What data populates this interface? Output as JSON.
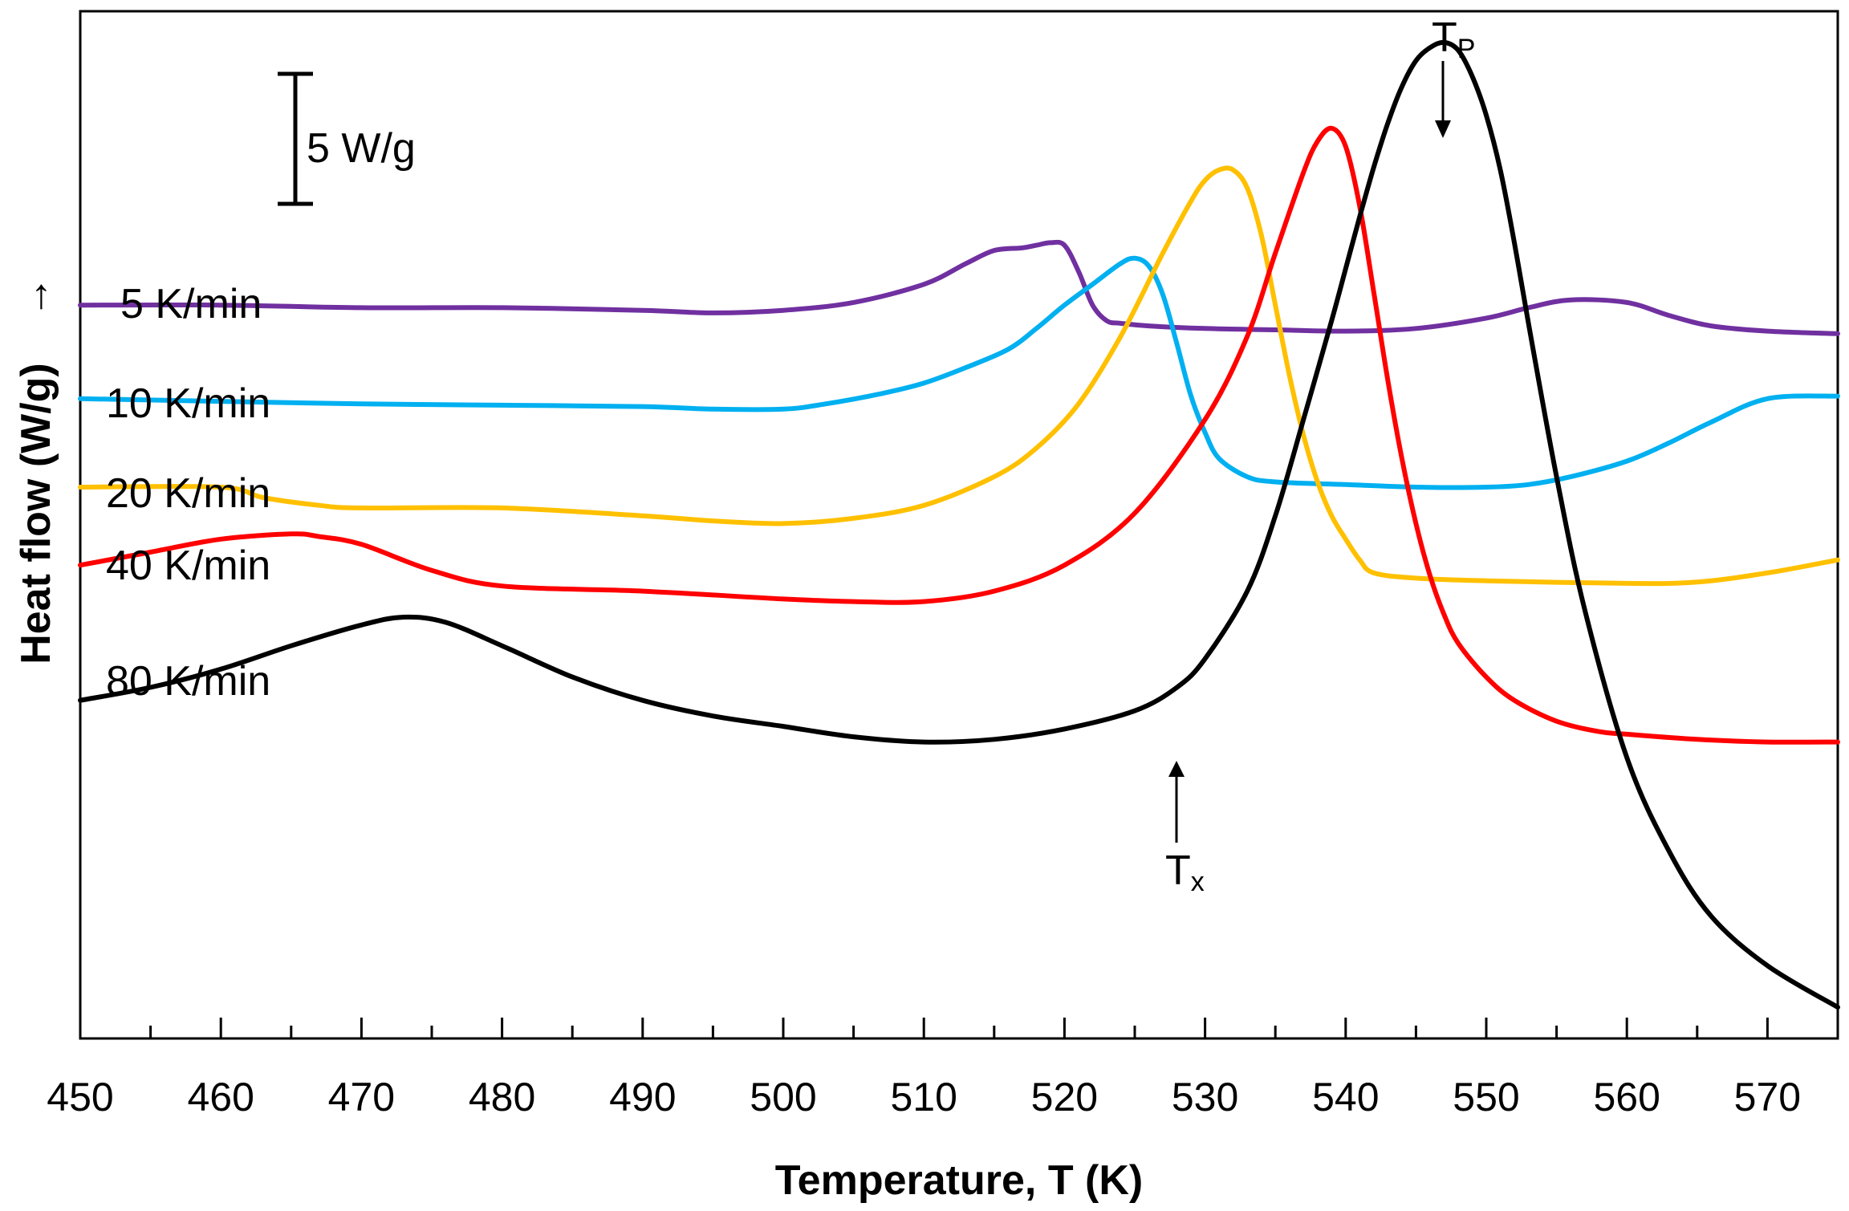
{
  "chart_data": {
    "type": "line",
    "title": "",
    "xlabel": "Temperature, T (K)",
    "ylabel": "Heat flow (W/g)",
    "ylabel_arrow": "→",
    "xlim": [
      450,
      575
    ],
    "ylim": [
      -13,
      26.5
    ],
    "xticks": [
      450,
      460,
      470,
      480,
      490,
      500,
      510,
      520,
      530,
      540,
      550,
      560,
      570
    ],
    "grid": false,
    "scale_bar": {
      "label": "5 W/g",
      "value": 5
    },
    "series": [
      {
        "name": "5 K/min",
        "color": "#7030A0",
        "x": [
          450,
          460,
          470,
          480,
          490,
          495,
          500,
          505,
          510,
          513,
          515,
          517,
          518,
          519,
          520,
          521,
          522,
          523,
          524,
          526,
          530,
          535,
          540,
          545,
          550,
          553,
          556,
          560,
          563,
          566,
          570,
          575
        ],
        "y": [
          15.2,
          15.2,
          15.1,
          15.1,
          15.0,
          14.9,
          15.0,
          15.3,
          16.0,
          16.8,
          17.3,
          17.4,
          17.5,
          17.6,
          17.5,
          16.5,
          15.2,
          14.6,
          14.5,
          14.4,
          14.3,
          14.25,
          14.2,
          14.3,
          14.7,
          15.1,
          15.4,
          15.3,
          14.8,
          14.4,
          14.2,
          14.1
        ]
      },
      {
        "name": "10 K/min",
        "color": "#00B0F0",
        "x": [
          450,
          460,
          470,
          480,
          490,
          495,
          500,
          503,
          507,
          510,
          513,
          516,
          518,
          520,
          522,
          524,
          525,
          526,
          527,
          528,
          529,
          530,
          531,
          533,
          535,
          540,
          545,
          550,
          553,
          556,
          560,
          563,
          566,
          570,
          575
        ],
        "y": [
          11.6,
          11.5,
          11.4,
          11.35,
          11.3,
          11.2,
          11.2,
          11.4,
          11.8,
          12.2,
          12.8,
          13.5,
          14.3,
          15.2,
          16.0,
          16.8,
          17.0,
          16.7,
          15.6,
          13.7,
          11.7,
          10.3,
          9.3,
          8.6,
          8.4,
          8.3,
          8.2,
          8.2,
          8.3,
          8.6,
          9.2,
          9.9,
          10.7,
          11.6,
          11.7
        ]
      },
      {
        "name": "20 K/min",
        "color": "#FFC000",
        "x": [
          450,
          460,
          463,
          467,
          470,
          480,
          490,
          495,
          500,
          505,
          510,
          515,
          518,
          521,
          524,
          527,
          529,
          530,
          531,
          532,
          533,
          534,
          535,
          536,
          537,
          538,
          539,
          540,
          541,
          542,
          545,
          550,
          560,
          565,
          570,
          575
        ],
        "y": [
          8.2,
          8.2,
          7.8,
          7.5,
          7.4,
          7.4,
          7.1,
          6.9,
          6.8,
          7.0,
          7.5,
          8.6,
          9.7,
          11.4,
          14.0,
          17.2,
          19.2,
          20.0,
          20.4,
          20.4,
          19.7,
          17.9,
          15.2,
          12.5,
          10.2,
          8.4,
          7.1,
          6.2,
          5.4,
          4.9,
          4.7,
          4.6,
          4.5,
          4.55,
          4.9,
          5.4
        ]
      },
      {
        "name": "40 K/min",
        "color": "#FF0000",
        "x": [
          450,
          455,
          460,
          465,
          467,
          470,
          475,
          480,
          490,
          500,
          505,
          510,
          515,
          520,
          525,
          530,
          533,
          535,
          537,
          538,
          539,
          540,
          541,
          542,
          543,
          544,
          545,
          546,
          547,
          548,
          550,
          552,
          555,
          558,
          560,
          565,
          570,
          575
        ],
        "y": [
          5.2,
          5.7,
          6.2,
          6.4,
          6.3,
          6.0,
          5.0,
          4.4,
          4.2,
          3.9,
          3.8,
          3.8,
          4.2,
          5.2,
          7.2,
          10.8,
          14.0,
          17.2,
          20.3,
          21.5,
          22.0,
          21.3,
          19.0,
          15.7,
          12.3,
          9.3,
          6.8,
          4.8,
          3.3,
          2.2,
          0.9,
          0.0,
          -0.8,
          -1.2,
          -1.3,
          -1.5,
          -1.6,
          -1.6
        ]
      },
      {
        "name": "80 K/min",
        "color": "#000000",
        "x": [
          450,
          455,
          460,
          465,
          470,
          473,
          476,
          480,
          485,
          490,
          495,
          500,
          505,
          510,
          515,
          520,
          525,
          528,
          530,
          533,
          535,
          537,
          539,
          540,
          541,
          542,
          543,
          544,
          545,
          546,
          547,
          548,
          549,
          550,
          551,
          552,
          553,
          555,
          557,
          560,
          563,
          566,
          570,
          575
        ],
        "y": [
          0.0,
          0.5,
          1.2,
          2.1,
          2.9,
          3.2,
          3.0,
          2.1,
          0.9,
          0.0,
          -0.6,
          -1.0,
          -1.4,
          -1.6,
          -1.5,
          -1.1,
          -0.4,
          0.5,
          1.6,
          4.2,
          7.1,
          10.8,
          14.6,
          16.6,
          18.6,
          20.5,
          22.2,
          23.6,
          24.6,
          25.1,
          25.3,
          25.0,
          24.0,
          22.5,
          20.4,
          17.6,
          14.5,
          8.6,
          3.5,
          -2.2,
          -5.8,
          -8.3,
          -10.2,
          -11.8
        ]
      }
    ],
    "annotations": [
      {
        "label": "T",
        "sub": "P",
        "x": 547,
        "y": 25.3,
        "arrow": "down"
      },
      {
        "label": "T",
        "sub": "x",
        "x": 528,
        "y": 0.1,
        "arrow": "up"
      }
    ]
  }
}
